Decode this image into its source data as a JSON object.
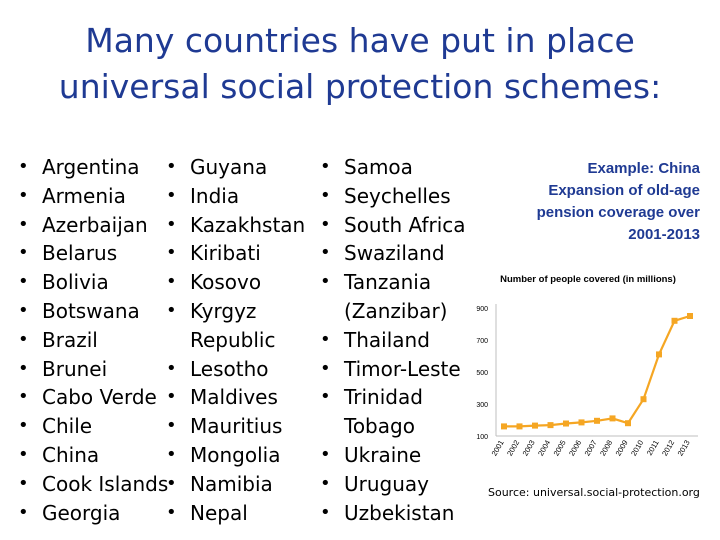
{
  "title": {
    "line1": "Many countries have put in place",
    "line2": "universal social protection schemes:"
  },
  "columns": [
    [
      {
        "text": "Argentina"
      },
      {
        "text": "Armenia"
      },
      {
        "text": "Azerbaijan"
      },
      {
        "text": "Belarus"
      },
      {
        "text": "Bolivia"
      },
      {
        "text": "Botswana"
      },
      {
        "text": "Brazil"
      },
      {
        "text": "Brunei"
      },
      {
        "text": "Cabo Verde"
      },
      {
        "text": "Chile"
      },
      {
        "text": "China"
      },
      {
        "text": "Cook Islands"
      },
      {
        "text": "Georgia"
      }
    ],
    [
      {
        "text": "Guyana"
      },
      {
        "text": "India"
      },
      {
        "text": "Kazakhstan"
      },
      {
        "text": "Kiribati"
      },
      {
        "text": "Kosovo"
      },
      {
        "text": "Kyrgyz"
      },
      {
        "text": "Republic",
        "cont": true
      },
      {
        "text": "Lesotho"
      },
      {
        "text": "Maldives"
      },
      {
        "text": "Mauritius"
      },
      {
        "text": "Mongolia"
      },
      {
        "text": "Namibia"
      },
      {
        "text": "Nepal"
      }
    ],
    [
      {
        "text": "Samoa"
      },
      {
        "text": "Seychelles"
      },
      {
        "text": "South Africa"
      },
      {
        "text": "Swaziland"
      },
      {
        "text": "Tanzania"
      },
      {
        "text": "(Zanzibar)",
        "cont": true
      },
      {
        "text": "Thailand"
      },
      {
        "text": "Timor-Leste"
      },
      {
        "text": "Trinidad"
      },
      {
        "text": "Tobago",
        "cont": true
      },
      {
        "text": "Ukraine"
      },
      {
        "text": "Uruguay"
      },
      {
        "text": "Uzbekistan"
      }
    ]
  ],
  "example": {
    "line1": "Example: China",
    "line2": "Expansion of old-age",
    "line3": "pension coverage over",
    "line4": "2001-2013"
  },
  "source": "Source: universal.social-protection.org",
  "colors": {
    "title": "#1f3a93",
    "line": "#f5a623",
    "marker": "#f5a623"
  },
  "chart_data": {
    "type": "line",
    "title": "Number of people covered (in millions)",
    "x": [
      "2001",
      "2002",
      "2003",
      "2004",
      "2005",
      "2006",
      "2007",
      "2008",
      "2009",
      "2010",
      "2011",
      "2012",
      "2013"
    ],
    "series": [
      {
        "values": [
          160,
          160,
          165,
          168,
          178,
          185,
          195,
          210,
          180,
          330,
          610,
          820,
          850
        ]
      }
    ],
    "yticks": [
      100,
      300,
      500,
      700,
      900
    ],
    "ylim": [
      100,
      900
    ],
    "xlabel": "",
    "ylabel": "",
    "grid": false,
    "legend": "none"
  }
}
